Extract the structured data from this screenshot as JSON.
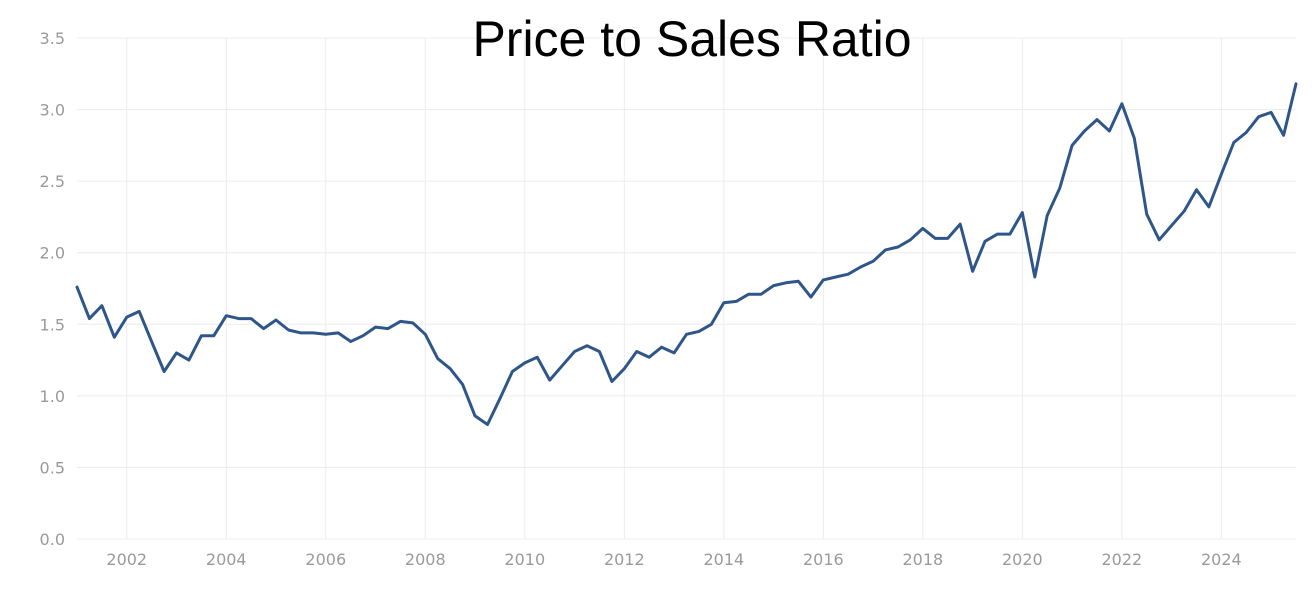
{
  "chart_data": {
    "type": "line",
    "title": "Price to Sales Ratio",
    "xlabel": "",
    "ylabel": "",
    "xlim": [
      2001.0,
      2025.5
    ],
    "ylim": [
      0,
      3.5
    ],
    "grid": true,
    "legend": "none",
    "x_ticks": [
      2002,
      2004,
      2006,
      2008,
      2010,
      2012,
      2014,
      2016,
      2018,
      2020,
      2022,
      2024
    ],
    "y_ticks": [
      "0.0",
      "0.5",
      "1.0",
      "1.5",
      "2.0",
      "2.5",
      "3.0",
      "3.5"
    ],
    "line_color": "#2e5689",
    "series": [
      {
        "x": [
          2001.0,
          2001.25,
          2001.5,
          2001.75,
          2002.0,
          2002.25,
          2002.5,
          2002.75,
          2003.0,
          2003.25,
          2003.5,
          2003.75,
          2004.0,
          2004.25,
          2004.5,
          2004.75,
          2005.0,
          2005.25,
          2005.5,
          2005.75,
          2006.0,
          2006.25,
          2006.5,
          2006.75,
          2007.0,
          2007.25,
          2007.5,
          2007.75,
          2008.0,
          2008.25,
          2008.5,
          2008.75,
          2009.0,
          2009.25,
          2009.5,
          2009.75,
          2010.0,
          2010.25,
          2010.5,
          2010.75,
          2011.0,
          2011.25,
          2011.5,
          2011.75,
          2012.0,
          2012.25,
          2012.5,
          2012.75,
          2013.0,
          2013.25,
          2013.5,
          2013.75,
          2014.0,
          2014.25,
          2014.5,
          2014.75,
          2015.0,
          2015.25,
          2015.5,
          2015.75,
          2016.0,
          2016.25,
          2016.5,
          2016.75,
          2017.0,
          2017.25,
          2017.5,
          2017.75,
          2018.0,
          2018.25,
          2018.5,
          2018.75,
          2019.0,
          2019.25,
          2019.5,
          2019.75,
          2020.0,
          2020.25,
          2020.5,
          2020.75,
          2021.0,
          2021.25,
          2021.5,
          2021.75,
          2022.0,
          2022.25,
          2022.5,
          2022.75,
          2023.0,
          2023.25,
          2023.5,
          2023.75,
          2024.0,
          2024.25,
          2024.5,
          2024.75,
          2025.0,
          2025.25,
          2025.5
        ],
        "values": [
          1.76,
          1.54,
          1.63,
          1.41,
          1.55,
          1.59,
          1.38,
          1.17,
          1.3,
          1.25,
          1.42,
          1.42,
          1.56,
          1.54,
          1.54,
          1.47,
          1.53,
          1.46,
          1.44,
          1.44,
          1.43,
          1.44,
          1.38,
          1.42,
          1.48,
          1.47,
          1.52,
          1.51,
          1.43,
          1.26,
          1.19,
          1.08,
          0.86,
          0.8,
          0.98,
          1.17,
          1.23,
          1.27,
          1.11,
          1.21,
          1.31,
          1.35,
          1.31,
          1.1,
          1.19,
          1.31,
          1.27,
          1.34,
          1.3,
          1.43,
          1.45,
          1.5,
          1.65,
          1.66,
          1.71,
          1.71,
          1.77,
          1.79,
          1.8,
          1.69,
          1.81,
          1.83,
          1.85,
          1.9,
          1.94,
          2.02,
          2.04,
          2.09,
          2.17,
          2.1,
          2.1,
          2.2,
          1.87,
          2.08,
          2.13,
          2.13,
          2.28,
          1.83,
          2.26,
          2.45,
          2.75,
          2.85,
          2.93,
          2.85,
          3.04,
          2.8,
          2.27,
          2.09,
          2.19,
          2.29,
          2.44,
          2.32,
          2.55,
          2.77,
          2.84,
          2.95,
          2.98,
          2.82,
          3.18
        ]
      }
    ]
  }
}
